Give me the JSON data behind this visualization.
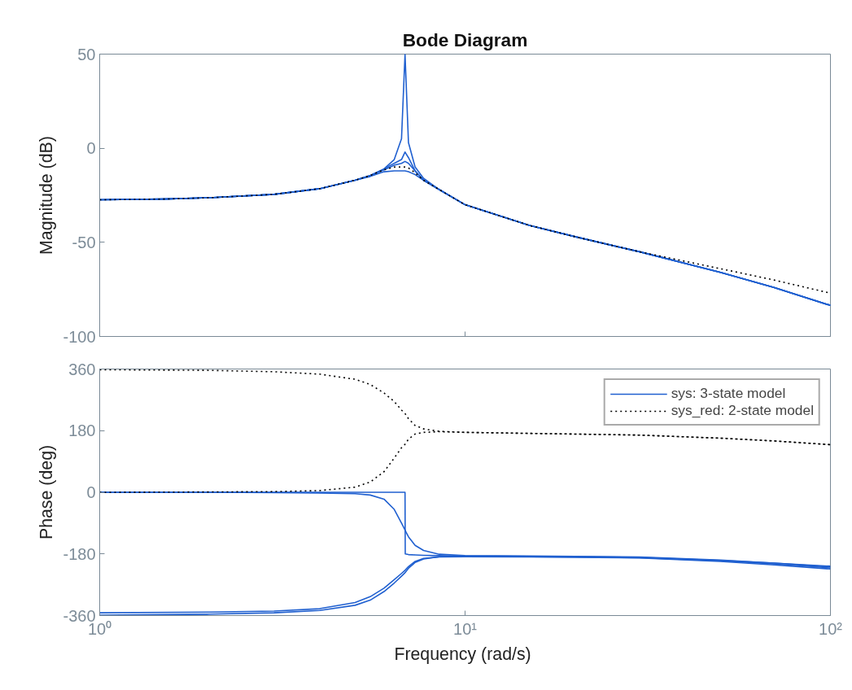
{
  "chart_data": [
    {
      "type": "line",
      "title": "Bode Diagram",
      "ylabel": "Magnitude (dB)",
      "log": "x",
      "tick_labels": "y",
      "legend": false,
      "grid": false,
      "x": [
        1,
        1.5,
        2,
        3,
        4,
        5,
        5.5,
        6,
        6.4,
        6.7,
        6.85,
        7,
        7.3,
        7.7,
        8.5,
        10,
        15,
        20,
        30,
        50,
        70,
        100
      ],
      "xlim": [
        1,
        100
      ],
      "xticks": [
        {
          "value": 1,
          "label": null
        },
        {
          "value": 10,
          "label": null
        },
        {
          "value": 100,
          "label": null
        }
      ],
      "ylim": [
        -100,
        50
      ],
      "yticks": [
        -100,
        -50,
        0,
        50
      ],
      "series": [
        {
          "color": "#2060d0",
          "line_style": "solid",
          "values": [
            -27.4,
            -27,
            -26.3,
            -24.5,
            -21.5,
            -17,
            -14.5,
            -11,
            -6,
            5,
            50,
            3,
            -10,
            -16,
            -22,
            -30,
            -41,
            -47,
            -55,
            -66,
            -74,
            -83.5
          ]
        },
        {
          "color": "#2060d0",
          "line_style": "solid",
          "values": [
            -27.4,
            -27,
            -26.3,
            -24.5,
            -21.5,
            -17,
            -14.5,
            -11,
            -8,
            -6,
            -2,
            -5,
            -12,
            -17,
            -22,
            -30,
            -41,
            -47,
            -55,
            -66,
            -74,
            -83.5
          ]
        },
        {
          "color": "#2060d0",
          "line_style": "solid",
          "values": [
            -27.4,
            -27,
            -26.3,
            -24.5,
            -21.5,
            -17,
            -14.5,
            -11.5,
            -9,
            -8,
            -7,
            -8,
            -12,
            -17,
            -22,
            -30,
            -41,
            -47,
            -55,
            -66,
            -74,
            -83.5
          ]
        },
        {
          "color": "#2060d0",
          "line_style": "solid",
          "values": [
            -27.4,
            -27,
            -26.3,
            -24.5,
            -21.5,
            -17,
            -15,
            -12.5,
            -12,
            -12,
            -12,
            -12.5,
            -14,
            -17,
            -22,
            -30,
            -41,
            -47,
            -55,
            -66,
            -74,
            -83.5
          ]
        },
        {
          "color": "#000000",
          "line_style": "dotted",
          "values": [
            -27.4,
            -27,
            -26.3,
            -24.5,
            -21.5,
            -17,
            -14.5,
            -11.5,
            -10,
            -10,
            -10,
            -10.5,
            -13,
            -17,
            -22,
            -30,
            -41,
            -47,
            -55,
            -64,
            -70,
            -77
          ]
        }
      ]
    },
    {
      "type": "line",
      "xlabel": "Frequency  (rad/s)",
      "ylabel": "Phase (deg)",
      "log": "x",
      "legend": "top right",
      "grid": false,
      "x": [
        1,
        2,
        3,
        4,
        5,
        5.5,
        6,
        6.4,
        6.7,
        6.85,
        6.86,
        7,
        7.3,
        7.7,
        8.5,
        10,
        15,
        20,
        30,
        50,
        70,
        100
      ],
      "xlim": [
        1,
        100
      ],
      "xticks": [
        {
          "value": 1,
          "label": "10⁰"
        },
        {
          "value": 10,
          "label": "10¹"
        },
        {
          "value": 100,
          "label": "10²"
        }
      ],
      "ylim": [
        -360,
        360
      ],
      "yticks": [
        -360,
        -180,
        0,
        180,
        360
      ],
      "series": [
        {
          "name": "sys: 3-state model",
          "color": "#2060d0",
          "line_style": "solid",
          "values": [
            0,
            0,
            0,
            0,
            0,
            0,
            0,
            0,
            0,
            0,
            -180,
            -182,
            -183,
            -184,
            -185,
            -187,
            -188,
            -189,
            -191,
            -200,
            -209,
            -221
          ]
        },
        {
          "color": "#2060d0",
          "line_style": "solid",
          "values": [
            0,
            0,
            -1,
            -2,
            -4,
            -8,
            -20,
            -50,
            -90,
            -110,
            -112,
            -130,
            -155,
            -170,
            -181,
            -185,
            -186,
            -187,
            -189,
            -198,
            -207,
            -218
          ]
        },
        {
          "color": "#2060d0",
          "line_style": "solid",
          "values": [
            -359,
            -356,
            -352,
            -345,
            -330,
            -315,
            -290,
            -265,
            -245,
            -235,
            -234,
            -222,
            -205,
            -195,
            -188,
            -186,
            -187,
            -188,
            -190,
            -199,
            -207,
            -216
          ]
        },
        {
          "color": "#2060d0",
          "line_style": "solid",
          "values": [
            -352,
            -350,
            -347,
            -340,
            -322,
            -305,
            -280,
            -255,
            -237,
            -228,
            -227,
            -217,
            -202,
            -193,
            -189,
            -188,
            -189,
            -190,
            -192,
            -202,
            -212,
            -224
          ]
        },
        {
          "name": "sys_red: 2-state model",
          "color": "#000000",
          "line_style": "dotted",
          "values": [
            358,
            356,
            352,
            345,
            330,
            315,
            290,
            265,
            240,
            230,
            229,
            215,
            195,
            185,
            178,
            175,
            172,
            170,
            167,
            158,
            150,
            139
          ]
        },
        {
          "color": "#000000",
          "line_style": "dotted",
          "values": [
            0,
            1,
            2,
            5,
            15,
            30,
            60,
            100,
            130,
            140,
            141,
            155,
            170,
            175,
            177,
            175,
            172,
            170,
            167,
            158,
            150,
            139
          ]
        }
      ]
    }
  ]
}
